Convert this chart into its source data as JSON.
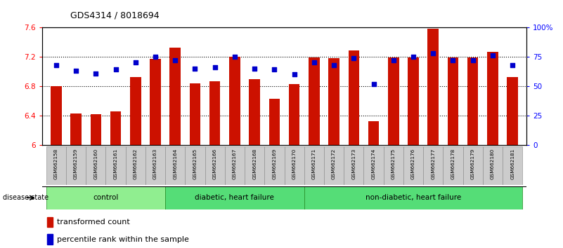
{
  "title": "GDS4314 / 8018694",
  "samples": [
    "GSM662158",
    "GSM662159",
    "GSM662160",
    "GSM662161",
    "GSM662162",
    "GSM662163",
    "GSM662164",
    "GSM662165",
    "GSM662166",
    "GSM662167",
    "GSM662168",
    "GSM662169",
    "GSM662170",
    "GSM662171",
    "GSM662172",
    "GSM662173",
    "GSM662174",
    "GSM662175",
    "GSM662176",
    "GSM662177",
    "GSM662178",
    "GSM662179",
    "GSM662180",
    "GSM662181"
  ],
  "red_values": [
    6.8,
    6.43,
    6.42,
    6.46,
    6.92,
    7.17,
    7.32,
    6.84,
    6.87,
    7.2,
    6.9,
    6.63,
    6.83,
    7.19,
    7.18,
    7.29,
    6.32,
    7.19,
    7.19,
    7.58,
    7.19,
    7.19,
    7.27,
    6.92
  ],
  "blue_values": [
    68,
    63,
    61,
    64,
    70,
    75,
    72,
    65,
    66,
    75,
    65,
    64,
    60,
    70,
    68,
    74,
    52,
    72,
    75,
    78,
    72,
    72,
    76,
    68
  ],
  "ylim_left": [
    6.0,
    7.6
  ],
  "ylim_right": [
    0,
    100
  ],
  "yticks_left": [
    6.0,
    6.4,
    6.8,
    7.2,
    7.6
  ],
  "ytick_labels_left": [
    "6",
    "6.4",
    "6.8",
    "7.2",
    "7.6"
  ],
  "yticks_right": [
    0,
    25,
    50,
    75,
    100
  ],
  "ytick_labels_right": [
    "0",
    "25",
    "50",
    "75",
    "100%"
  ],
  "bar_color": "#CC1100",
  "square_color": "#0000CC",
  "bar_bottom": 6.0,
  "group_ranges": [
    {
      "start": 0,
      "end": 5,
      "label": "control",
      "color": "#90EE90"
    },
    {
      "start": 6,
      "end": 12,
      "label": "diabetic, heart failure",
      "color": "#55DD77"
    },
    {
      "start": 13,
      "end": 23,
      "label": "non-diabetic, heart failure",
      "color": "#55DD77"
    }
  ],
  "disease_state_label": "disease state",
  "legend1_label": "transformed count",
  "legend2_label": "percentile rank within the sample"
}
